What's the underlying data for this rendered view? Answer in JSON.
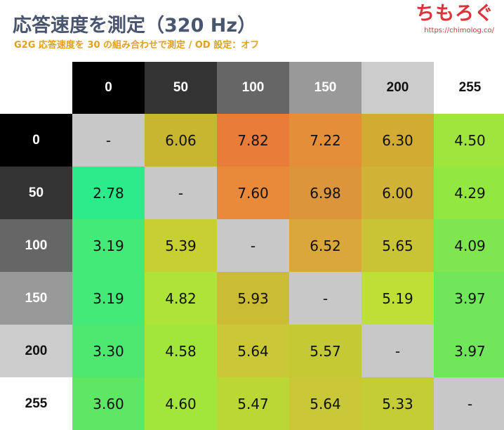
{
  "header": {
    "title": "応答速度を測定（320 Hz）",
    "subtitle": "G2G 応答速度を 30 の組み合わせで測定 / OD 設定：オフ",
    "brand": "ちもろぐ",
    "url": "https://chimolog.co/"
  },
  "chart_data": {
    "type": "heatmap",
    "columns": [
      "0",
      "50",
      "100",
      "150",
      "200",
      "255"
    ],
    "rows": [
      "0",
      "50",
      "100",
      "150",
      "200",
      "255"
    ],
    "values": [
      [
        "-",
        "6.06",
        "7.82",
        "7.22",
        "6.30",
        "4.50"
      ],
      [
        "2.78",
        "-",
        "7.60",
        "6.98",
        "6.00",
        "4.29"
      ],
      [
        "3.19",
        "5.39",
        "-",
        "6.52",
        "5.65",
        "4.09"
      ],
      [
        "3.19",
        "4.82",
        "5.93",
        "-",
        "5.19",
        "3.97"
      ],
      [
        "3.30",
        "4.58",
        "5.64",
        "5.57",
        "-",
        "3.97"
      ],
      [
        "3.60",
        "4.60",
        "5.47",
        "5.64",
        "5.33",
        "-"
      ]
    ],
    "cell_colors": [
      [
        "#c8c8c8",
        "#c8b631",
        "#ea7c3a",
        "#e48e3a",
        "#d2ab33",
        "#9fe53b"
      ],
      [
        "#2ceb8a",
        "#c8c8c8",
        "#e98a3a",
        "#dd953b",
        "#cfb236",
        "#93e741"
      ],
      [
        "#44ea78",
        "#c7cf31",
        "#c8c8c8",
        "#daa73a",
        "#c8c433",
        "#7fe64f"
      ],
      [
        "#44ea78",
        "#aee338",
        "#cabc34",
        "#c8c8c8",
        "#bedf35",
        "#70e65b"
      ],
      [
        "#4ee870",
        "#a2e63b",
        "#c9c836",
        "#c4c934",
        "#c8c8c8",
        "#70e65b"
      ],
      [
        "#5ee763",
        "#a2e63b",
        "#bad736",
        "#c9c836",
        "#c4cc36",
        "#c8c8c8"
      ]
    ],
    "header_colors": [
      "#000000",
      "#333333",
      "#666666",
      "#999999",
      "#cccccc",
      "#ffffff"
    ],
    "header_text_colors": [
      "#ffffff",
      "#ffffff",
      "#ffffff",
      "#ffffff",
      "#111111",
      "#111111"
    ]
  }
}
